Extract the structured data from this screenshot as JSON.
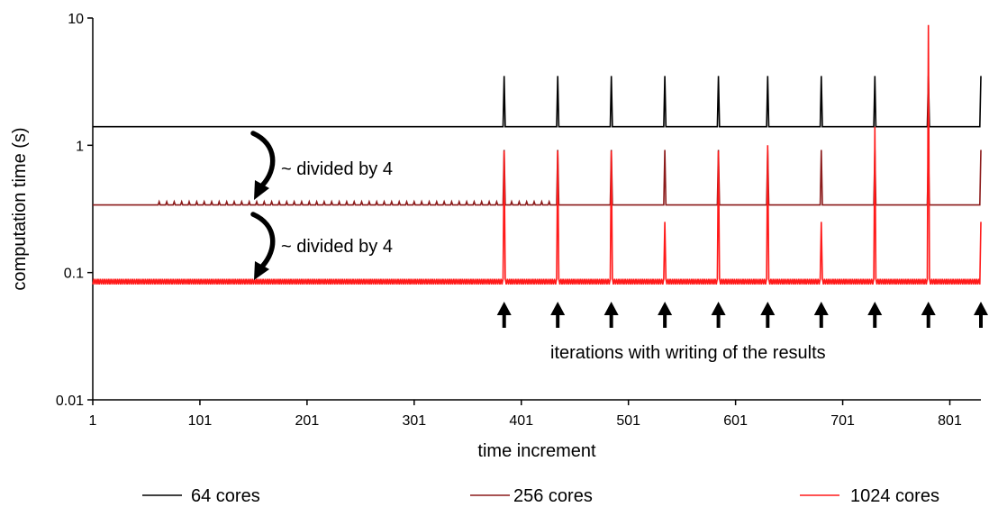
{
  "chart_data": {
    "type": "line",
    "xlabel": "time increment",
    "ylabel": "computation time (s)",
    "xlim": [
      1,
      830
    ],
    "ylim": [
      0.01,
      10
    ],
    "yscale": "log",
    "x_ticks": [
      1,
      101,
      201,
      301,
      401,
      501,
      601,
      701,
      801
    ],
    "y_ticks": [
      {
        "value": 0.01,
        "label": "0.01"
      },
      {
        "value": 0.1,
        "label": "0.1"
      },
      {
        "value": 1,
        "label": "1"
      },
      {
        "value": 10,
        "label": "10"
      }
    ],
    "grid": false,
    "legend_position": "bottom",
    "write_iterations": [
      385,
      435,
      485,
      535,
      585,
      631,
      681,
      731,
      781,
      830
    ],
    "series": [
      {
        "name": "64 cores",
        "color": "#000000",
        "baseline": 1.4,
        "spike": 3.5,
        "spikes_at": [
          385,
          435,
          485,
          535,
          585,
          631,
          681,
          731,
          781,
          830
        ]
      },
      {
        "name": "256 cores",
        "color": "#8b1a1a",
        "baseline": 0.34,
        "spike": 0.92,
        "spikes_at": [
          385,
          435,
          485,
          535,
          585,
          631,
          681,
          731,
          781,
          830
        ]
      },
      {
        "name": "1024 cores",
        "color": "#ff1a1a",
        "baseline": 0.085,
        "spikes": [
          [
            385,
            0.9
          ],
          [
            435,
            0.9
          ],
          [
            485,
            0.9
          ],
          [
            535,
            0.25
          ],
          [
            585,
            0.9
          ],
          [
            631,
            1.0
          ],
          [
            681,
            0.25
          ],
          [
            731,
            1.4
          ],
          [
            781,
            8.8
          ],
          [
            830,
            0.25
          ]
        ]
      }
    ],
    "annotations": {
      "divided_1": "~ divided by 4",
      "divided_2": "~ divided by 4",
      "write_note": "iterations with writing of the results"
    }
  }
}
